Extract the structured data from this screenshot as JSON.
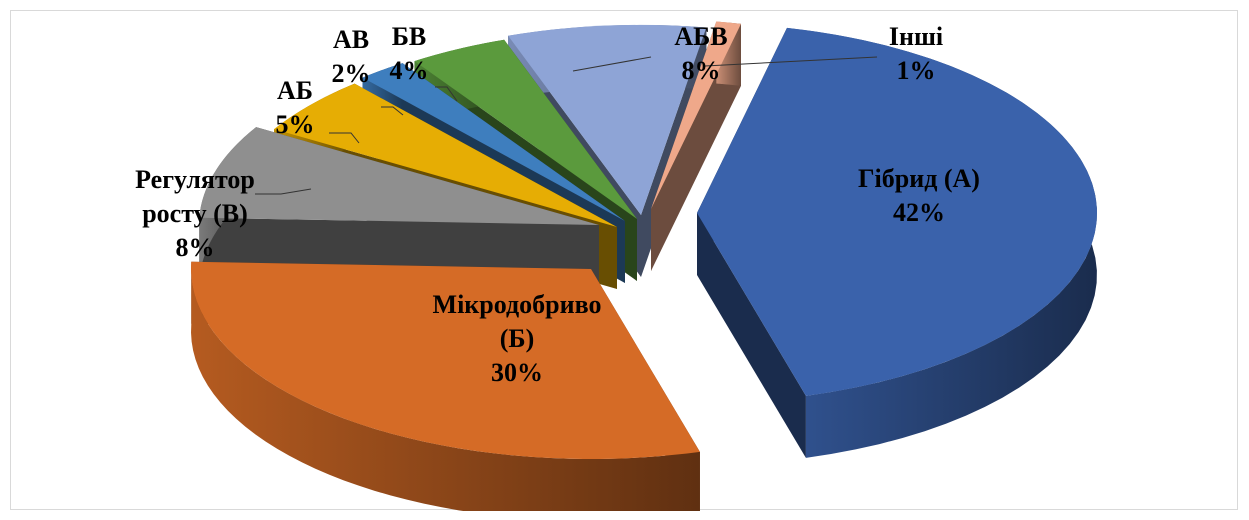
{
  "chart_data": {
    "type": "pie",
    "style": "3d-exploded",
    "legend": "none",
    "slices": [
      {
        "name": "Гібрид (А)",
        "label_lines": [
          "Гібрид (А)"
        ],
        "pct_text": "42%",
        "value": 42,
        "color": "#3a62ab"
      },
      {
        "name": "Мікродобриво (Б)",
        "label_lines": [
          "Мікродобриво",
          "(Б)"
        ],
        "pct_text": "30%",
        "value": 30,
        "color": "#d56b26"
      },
      {
        "name": "Регулятор росту (В)",
        "label_lines": [
          "Регулятор",
          "росту (В)"
        ],
        "pct_text": "8%",
        "value": 8,
        "color": "#8f8f8f"
      },
      {
        "name": "АБ",
        "label_lines": [
          "АБ"
        ],
        "pct_text": "5%",
        "value": 5,
        "color": "#e6ad04"
      },
      {
        "name": "АВ",
        "label_lines": [
          "АВ"
        ],
        "pct_text": "2%",
        "value": 2,
        "color": "#3e7ebe"
      },
      {
        "name": "БВ",
        "label_lines": [
          "БВ"
        ],
        "pct_text": "4%",
        "value": 4,
        "color": "#5b9a3d"
      },
      {
        "name": "АБВ",
        "label_lines": [
          "АБВ"
        ],
        "pct_text": "8%",
        "value": 8,
        "color": "#8ea4d6"
      },
      {
        "name": "Інші",
        "label_lines": [
          "Інші"
        ],
        "pct_text": "1%",
        "value": 1,
        "color": "#efa88a"
      }
    ]
  }
}
